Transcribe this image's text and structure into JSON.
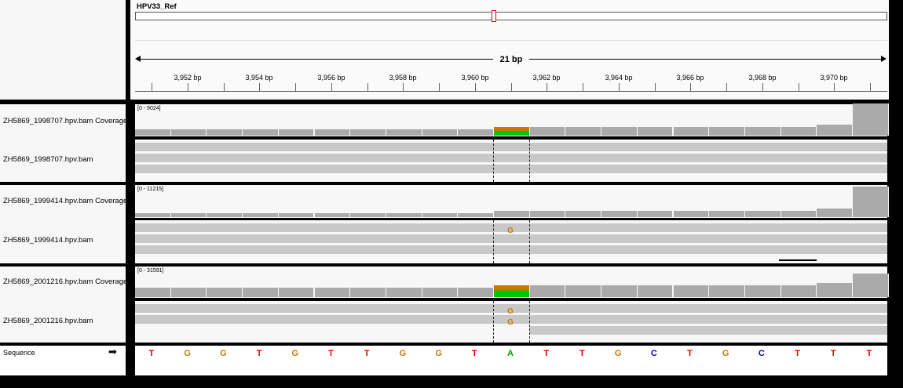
{
  "reference": {
    "name": "HPV33_Ref"
  },
  "ruler": {
    "span_label": "21 bp",
    "ticks": [
      "3,952 bp",
      "3,954 bp",
      "3,956 bp",
      "3,958 bp",
      "3,960 bp",
      "3,962 bp",
      "3,964 bp",
      "3,966 bp",
      "3,968 bp",
      "3,970 bp"
    ]
  },
  "tracks": [
    {
      "coverage_label": "ZH5869_1998707.hpv.bam Coverage",
      "range": "[0 - 9024]",
      "alignment_label": "ZH5869_1998707.hpv.bam"
    },
    {
      "coverage_label": "ZH5869_1999414.hpv.bam Coverage",
      "range": "[0 - 11215]",
      "alignment_label": "ZH5869_1999414.hpv.bam"
    },
    {
      "coverage_label": "ZH5869_2001216.hpv.bam Coverage",
      "range": "[0 - 31591]",
      "alignment_label": "ZH5869_2001216.hpv.bam"
    }
  ],
  "sequence": {
    "label": "Sequence",
    "arrow": "➡",
    "bases": [
      "T",
      "G",
      "G",
      "T",
      "G",
      "T",
      "T",
      "G",
      "G",
      "T",
      "A",
      "T",
      "T",
      "G",
      "C",
      "T",
      "G",
      "C",
      "T",
      "T",
      "T"
    ]
  },
  "mismatches": {
    "track2": [
      "G"
    ],
    "track3": [
      "G",
      "G"
    ]
  },
  "colors": {
    "A": "#00a000",
    "C": "#0000c8",
    "G": "#c87800",
    "T": "#e00000"
  }
}
